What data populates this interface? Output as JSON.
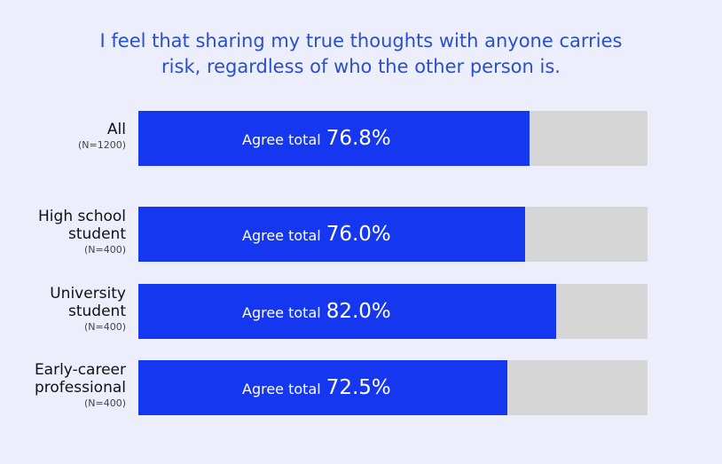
{
  "chart_data": {
    "type": "bar",
    "orientation": "horizontal",
    "title": "I feel that sharing my true thoughts with anyone carries risk, regardless of who the other person is.",
    "categories": [
      "All",
      "High school student",
      "University student",
      "Early-career professional"
    ],
    "sample_sizes": [
      "(N=1200)",
      "(N=400)",
      "(N=400)",
      "(N=400)"
    ],
    "bar_label": "Agree total",
    "values": [
      76.8,
      76.0,
      82.0,
      72.5
    ],
    "value_labels": [
      "76.8%",
      "76.0%",
      "82.0%",
      "72.5%"
    ],
    "color": "#1537f0",
    "track_color": "#d6d6d6",
    "xlim": [
      0,
      100
    ]
  }
}
